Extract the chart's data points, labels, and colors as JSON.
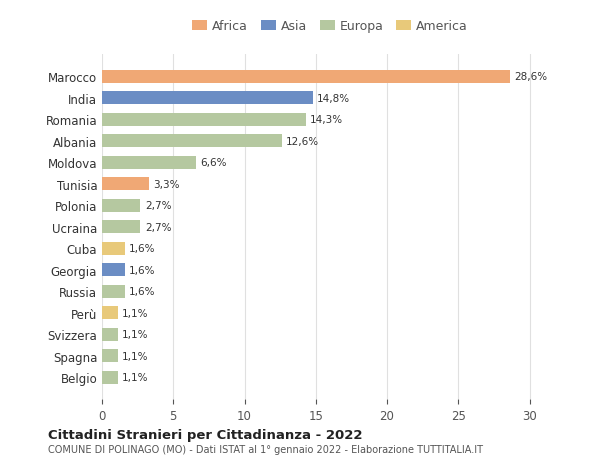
{
  "countries": [
    "Belgio",
    "Spagna",
    "Svizzera",
    "Perù",
    "Russia",
    "Georgia",
    "Cuba",
    "Ucraina",
    "Polonia",
    "Tunisia",
    "Moldova",
    "Albania",
    "Romania",
    "India",
    "Marocco"
  ],
  "values": [
    1.1,
    1.1,
    1.1,
    1.1,
    1.6,
    1.6,
    1.6,
    2.7,
    2.7,
    3.3,
    6.6,
    12.6,
    14.3,
    14.8,
    28.6
  ],
  "labels": [
    "1,1%",
    "1,1%",
    "1,1%",
    "1,1%",
    "1,6%",
    "1,6%",
    "1,6%",
    "2,7%",
    "2,7%",
    "3,3%",
    "6,6%",
    "12,6%",
    "14,3%",
    "14,8%",
    "28,6%"
  ],
  "colors": [
    "#b5c8a0",
    "#b5c8a0",
    "#b5c8a0",
    "#e8c97a",
    "#b5c8a0",
    "#6b8dc4",
    "#e8c97a",
    "#b5c8a0",
    "#b5c8a0",
    "#f0a875",
    "#b5c8a0",
    "#b5c8a0",
    "#b5c8a0",
    "#6b8dc4",
    "#f0a875"
  ],
  "legend": [
    {
      "label": "Africa",
      "color": "#f0a875"
    },
    {
      "label": "Asia",
      "color": "#6b8dc4"
    },
    {
      "label": "Europa",
      "color": "#b5c8a0"
    },
    {
      "label": "America",
      "color": "#e8c97a"
    }
  ],
  "title": "Cittadini Stranieri per Cittadinanza - 2022",
  "subtitle": "COMUNE DI POLINAGO (MO) - Dati ISTAT al 1° gennaio 2022 - Elaborazione TUTTITALIA.IT",
  "xlim": [
    0,
    32
  ],
  "xticks": [
    0,
    5,
    10,
    15,
    20,
    25,
    30
  ],
  "bg_color": "#ffffff",
  "grid_color": "#e0e0e0"
}
